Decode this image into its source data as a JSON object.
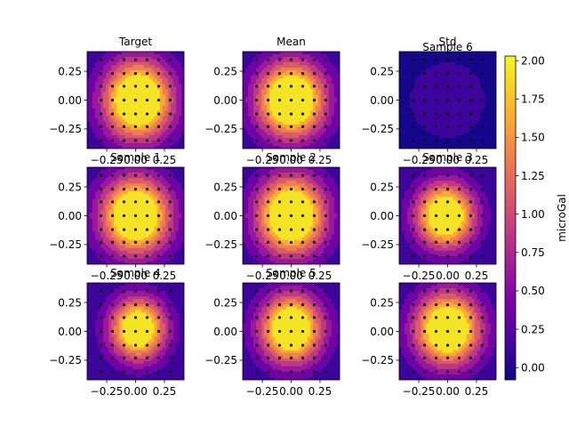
{
  "chart_data": {
    "type": "heatmap",
    "layout": "3x3 grid of filled-contour panels with one shared colorbar on the right",
    "colormap": "plasma",
    "colorbar": {
      "label": "microGal",
      "ticks": [
        2.0,
        1.75,
        1.5,
        1.25,
        1.0,
        0.75,
        0.5,
        0.25,
        0.0
      ],
      "tick_labels": [
        "2.00",
        "1.75",
        "1.50",
        "1.25",
        "1.00",
        "0.75",
        "0.50",
        "0.25",
        "0.00"
      ],
      "range": [
        -0.08,
        2.03
      ]
    },
    "x_ticks": [
      -0.25,
      0.0,
      0.25
    ],
    "x_tick_labels": [
      "−0.25",
      "0.00",
      "0.25"
    ],
    "y_ticks": [
      0.25,
      0.0,
      -0.25
    ],
    "y_tick_labels": [
      "0.25",
      "0.00",
      "−0.25"
    ],
    "xlim": [
      -0.42,
      0.42
    ],
    "ylim": [
      -0.42,
      0.42
    ],
    "observation_grid": {
      "x": [
        -0.3,
        -0.2,
        -0.1,
        0.0,
        0.1,
        0.2,
        0.3
      ],
      "y": [
        -0.35,
        -0.23,
        -0.12,
        0.0,
        0.12,
        0.23,
        0.35
      ]
    },
    "panels": [
      {
        "title": "Target",
        "field": {
          "peak": 2.0,
          "cx": 0.02,
          "cy": 0.0,
          "sx": 0.21,
          "sy": 0.24,
          "plateau": 1.75
        }
      },
      {
        "title": "Mean",
        "field": {
          "peak": 2.0,
          "cx": 0.0,
          "cy": 0.0,
          "sx": 0.21,
          "sy": 0.23,
          "plateau": 1.75
        }
      },
      {
        "title": "Std",
        "field": {
          "peak": 0.02,
          "cx": 0.0,
          "cy": 0.0,
          "sx": 0.3,
          "sy": 0.3,
          "plateau": 0.0,
          "base": -0.06
        }
      },
      {
        "title": "Sample 6",
        "overlay_of": 2
      },
      {
        "title": "Sample 1",
        "field": {
          "peak": 2.0,
          "cx": 0.0,
          "cy": 0.0,
          "sx": 0.21,
          "sy": 0.23,
          "plateau": 1.75
        }
      },
      {
        "title": "Sample 2",
        "field": {
          "peak": 2.0,
          "cx": 0.0,
          "cy": 0.0,
          "sx": 0.21,
          "sy": 0.24,
          "plateau": 1.75
        }
      },
      {
        "title": "Sample 3",
        "field": {
          "peak": 1.85,
          "cx": -0.02,
          "cy": 0.0,
          "sx": 0.18,
          "sy": 0.2,
          "plateau": 1.75
        }
      },
      {
        "title": "Sample 4",
        "field": {
          "peak": 1.82,
          "cx": 0.02,
          "cy": 0.02,
          "sx": 0.17,
          "sy": 0.19,
          "plateau": 1.75
        }
      },
      {
        "title": "Sample 5",
        "field": {
          "peak": 1.9,
          "cx": 0.0,
          "cy": 0.02,
          "sx": 0.19,
          "sy": 0.21,
          "plateau": 1.75
        }
      },
      {
        "title": "",
        "field": {
          "peak": 1.95,
          "cx": 0.0,
          "cy": 0.02,
          "sx": 0.2,
          "sy": 0.22,
          "plateau": 1.75
        }
      }
    ]
  }
}
